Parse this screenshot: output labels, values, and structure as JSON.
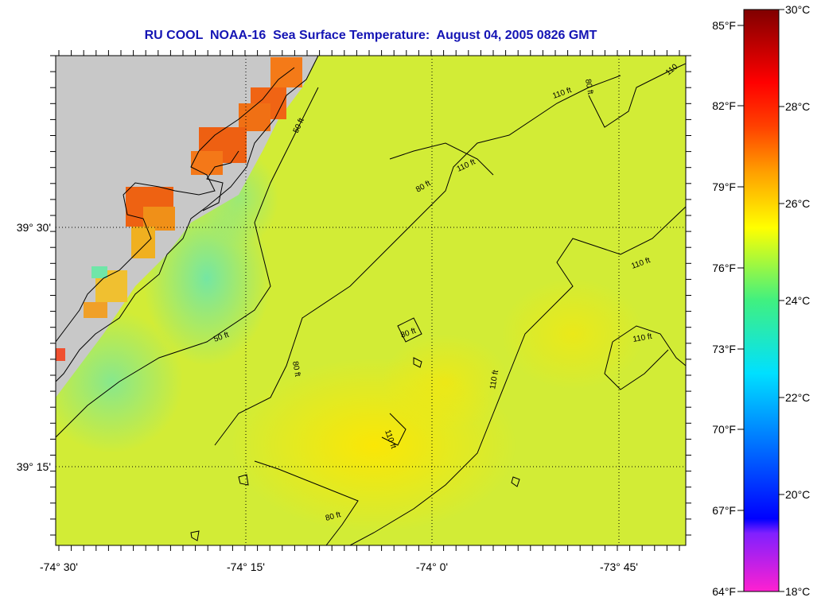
{
  "title": "RU COOL  NOAA-16  Sea Surface Temperature:  August 04, 2005 0826 GMT",
  "longitude_labels": [
    "-74° 30'",
    "-74° 15'",
    "-74° 0'",
    "-73° 45'"
  ],
  "latitude_labels": [
    "39° 30'",
    "39° 15'"
  ],
  "contour_labels": [
    "50 ft",
    "50 ft",
    "80 ft",
    "80 ft",
    "80 ft",
    "80 ft",
    "80 ft",
    "110 ft",
    "110 ft",
    "110 ft",
    "110 ft",
    "110 ft",
    "110 ft",
    "110"
  ],
  "colorbar": {
    "fahrenheit_labels": [
      "85°F",
      "82°F",
      "79°F",
      "76°F",
      "73°F",
      "70°F",
      "67°F",
      "64°F"
    ],
    "celsius_labels": [
      "30°C",
      "28°C",
      "26°C",
      "24°C",
      "22°C",
      "20°C",
      "18°C"
    ]
  },
  "colors": {
    "title": "#1414b4",
    "land": "#c8c8c8",
    "sst_base": "#d2ec36",
    "nearshore_warm": "#f06414",
    "nearshore_cool": "#78e89a"
  }
}
